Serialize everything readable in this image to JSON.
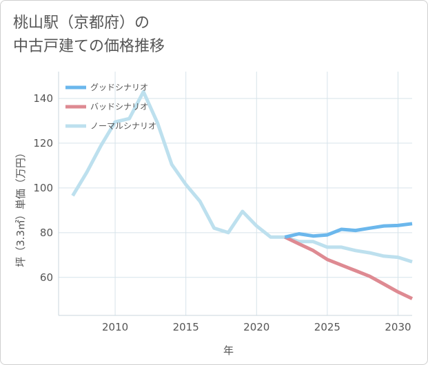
{
  "title_line1": "桃山駅（京都府）の",
  "title_line2": "中古戸建ての価格推移",
  "chart_data": {
    "type": "line",
    "xlabel": "年",
    "ylabel": "坪（3.3㎡）単価（万円）",
    "xlim": [
      2006,
      2031
    ],
    "ylim": [
      43,
      152
    ],
    "xticks": [
      2010,
      2015,
      2020,
      2025,
      2030
    ],
    "yticks": [
      60,
      80,
      100,
      120,
      140
    ],
    "grid": true,
    "legend_position": "top-left",
    "series": [
      {
        "name": "グッドシナリオ",
        "color": "#6bb7ec",
        "x": [
          2022,
          2023,
          2024,
          2025,
          2026,
          2027,
          2028,
          2029,
          2030,
          2031
        ],
        "values": [
          78,
          79.5,
          78.5,
          79,
          81.5,
          81,
          82,
          83,
          83.2,
          84
        ]
      },
      {
        "name": "バッドシナリオ",
        "color": "#de8a92",
        "x": [
          2022,
          2023,
          2024,
          2025,
          2026,
          2027,
          2028,
          2029,
          2030,
          2031
        ],
        "values": [
          78,
          75,
          72,
          68,
          65.5,
          63,
          60.5,
          57,
          53.5,
          50.5
        ]
      },
      {
        "name": "ノーマルシナリオ",
        "color": "#bde0ee",
        "x": [
          2007,
          2008,
          2009,
          2010,
          2011,
          2012,
          2013,
          2014,
          2015,
          2016,
          2017,
          2018,
          2019,
          2020,
          2021,
          2022,
          2023,
          2024,
          2025,
          2026,
          2027,
          2028,
          2029,
          2030,
          2031
        ],
        "values": [
          96.5,
          107,
          119,
          129.5,
          131,
          143,
          129,
          110.5,
          101.5,
          94,
          82,
          80,
          89.5,
          83,
          78,
          78,
          76,
          76,
          73.5,
          73.5,
          72,
          71,
          69.5,
          69,
          67
        ]
      }
    ]
  }
}
